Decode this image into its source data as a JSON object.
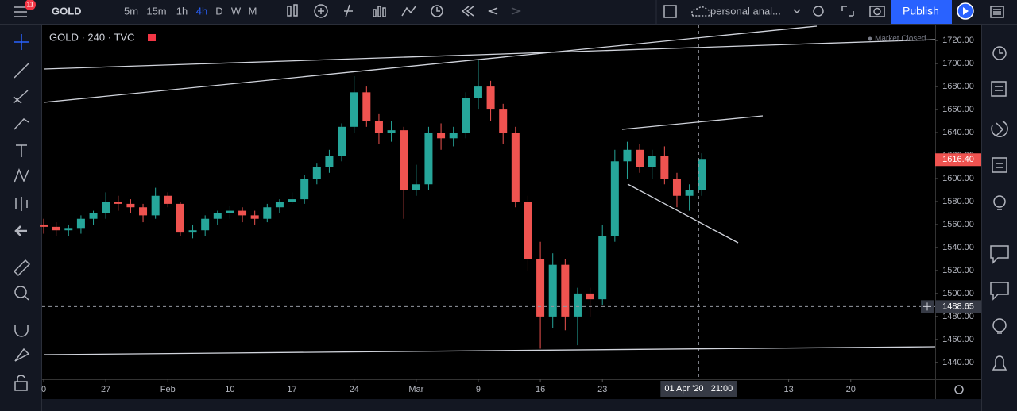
{
  "toolbar": {
    "badge": "11",
    "symbol": "GOLD",
    "intervals": [
      "5m",
      "15m",
      "1h",
      "4h",
      "D",
      "W",
      "M"
    ],
    "layout_name": "personal anal...",
    "publish": "Publish"
  },
  "chart_data": {
    "type": "candlestick",
    "title": "GOLD · 240 · TVC",
    "status": "Market Closed",
    "up_color": "#26a69a",
    "down_color": "#ef5350",
    "x": [
      0,
      1,
      2,
      3,
      4,
      5,
      6,
      7,
      8,
      9,
      10,
      11,
      12,
      13,
      14,
      15,
      16,
      17,
      18,
      19,
      20,
      21,
      22,
      23,
      24,
      25,
      26,
      27,
      28,
      29,
      30,
      31,
      32,
      33,
      34,
      35,
      36,
      37,
      38,
      39,
      40,
      41,
      42,
      43,
      44,
      45,
      46,
      47,
      48,
      49,
      50,
      51,
      52,
      53
    ],
    "open": [
      1560,
      1558,
      1555,
      1557,
      1565,
      1570,
      1580,
      1578,
      1575,
      1568,
      1585,
      1578,
      1553,
      1555,
      1565,
      1570,
      1572,
      1568,
      1565,
      1575,
      1580,
      1582,
      1600,
      1610,
      1620,
      1645,
      1675,
      1650,
      1640,
      1642,
      1590,
      1595,
      1640,
      1635,
      1640,
      1670,
      1680,
      1660,
      1640,
      1580,
      1530,
      1480,
      1525,
      1480,
      1500,
      1495,
      1550,
      1615,
      1625,
      1610,
      1620,
      1600,
      1585,
      1590
    ],
    "high": [
      1565,
      1562,
      1560,
      1568,
      1572,
      1588,
      1585,
      1582,
      1578,
      1592,
      1588,
      1580,
      1560,
      1568,
      1572,
      1576,
      1575,
      1572,
      1578,
      1582,
      1588,
      1603,
      1613,
      1625,
      1648,
      1689,
      1680,
      1656,
      1650,
      1645,
      1612,
      1645,
      1648,
      1645,
      1675,
      1703,
      1685,
      1665,
      1645,
      1585,
      1545,
      1535,
      1530,
      1505,
      1505,
      1560,
      1625,
      1632,
      1630,
      1625,
      1628,
      1605,
      1595,
      1622
    ],
    "low": [
      1552,
      1550,
      1550,
      1552,
      1560,
      1565,
      1572,
      1570,
      1562,
      1565,
      1575,
      1550,
      1548,
      1550,
      1560,
      1565,
      1562,
      1560,
      1562,
      1570,
      1578,
      1578,
      1595,
      1605,
      1615,
      1640,
      1645,
      1630,
      1632,
      1565,
      1585,
      1590,
      1625,
      1628,
      1635,
      1660,
      1650,
      1630,
      1575,
      1520,
      1452,
      1470,
      1468,
      1455,
      1480,
      1490,
      1545,
      1600,
      1605,
      1600,
      1595,
      1575,
      1572,
      1585
    ],
    "close": [
      1558,
      1555,
      1557,
      1565,
      1570,
      1580,
      1578,
      1575,
      1568,
      1585,
      1578,
      1553,
      1555,
      1565,
      1570,
      1572,
      1568,
      1565,
      1575,
      1580,
      1582,
      1600,
      1610,
      1620,
      1645,
      1675,
      1650,
      1640,
      1642,
      1590,
      1595,
      1640,
      1635,
      1640,
      1670,
      1680,
      1660,
      1640,
      1580,
      1530,
      1480,
      1525,
      1480,
      1500,
      1495,
      1550,
      1615,
      1625,
      1610,
      1620,
      1600,
      1585,
      1590,
      1616.4
    ],
    "xlim": [
      -0.13,
      71.8
    ],
    "ylim": [
      1425.4,
      1733.9
    ],
    "yticks": [
      {
        "value": 1440,
        "label": "1440.00"
      },
      {
        "value": 1460,
        "label": "1460.00"
      },
      {
        "value": 1480,
        "label": "1480.00"
      },
      {
        "value": 1500,
        "label": "1500.00"
      },
      {
        "value": 1520,
        "label": "1520.00"
      },
      {
        "value": 1540,
        "label": "1540.00"
      },
      {
        "value": 1560,
        "label": "1560.00"
      },
      {
        "value": 1580,
        "label": "1580.00"
      },
      {
        "value": 1600,
        "label": "1600.00"
      },
      {
        "value": 1620,
        "label": "1620.00"
      },
      {
        "value": 1640,
        "label": "1640.00"
      },
      {
        "value": 1660,
        "label": "1660.00"
      },
      {
        "value": 1680,
        "label": "1680.00"
      },
      {
        "value": 1700,
        "label": "1700.00"
      },
      {
        "value": 1720,
        "label": "1720.00"
      }
    ],
    "xticks": [
      0,
      {
        "value": 5,
        "label": "27"
      },
      {
        "value": 10,
        "label": "Feb"
      },
      {
        "value": 15,
        "label": "10"
      },
      {
        "value": 20,
        "label": "17"
      },
      {
        "value": 25,
        "label": "24"
      },
      {
        "value": 30,
        "label": "Mar"
      },
      {
        "value": 35,
        "label": "9"
      },
      {
        "value": 40,
        "label": "16"
      },
      {
        "value": 45,
        "label": "23"
      },
      {
        "value": 60,
        "label": "13"
      },
      {
        "value": 65,
        "label": "20"
      }
    ],
    "last_price": {
      "value": 1616.4,
      "label": "1616.40"
    },
    "crosshair_price": 1488.65,
    "crosshair_time": {
      "value": 52.75,
      "label": "01 Apr '20   21:00"
    }
  }
}
